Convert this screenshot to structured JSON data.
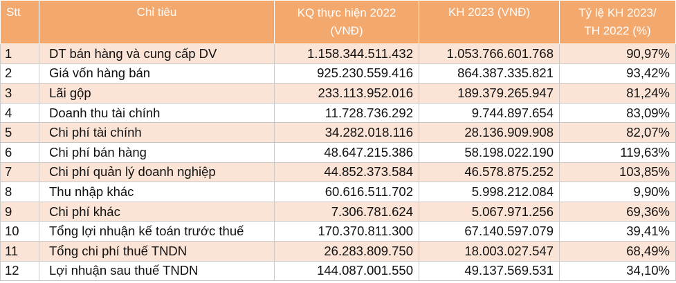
{
  "table": {
    "headers": {
      "stt": "Stt",
      "name": "Chỉ tiêu",
      "actual_2022_line1": "KQ thực hiện 2022",
      "actual_2022_line2": "(VNĐ)",
      "plan_2023": "KH 2023 (VNĐ)",
      "ratio_line1": "Tỷ lệ KH 2023/",
      "ratio_line2": "TH 2022 (%)"
    },
    "rows": [
      {
        "stt": "1",
        "name": "DT bán hàng và cung cấp DV",
        "actual_2022": "1.158.344.511.432",
        "plan_2023": "1.053.766.601.768",
        "ratio": "90,97%"
      },
      {
        "stt": "2",
        "name": "Giá vốn hàng bán",
        "actual_2022": "925.230.559.416",
        "plan_2023": "864.387.335.821",
        "ratio": "93,42%"
      },
      {
        "stt": "3",
        "name": "Lãi gộp",
        "actual_2022": "233.113.952.016",
        "plan_2023": "189.379.265.947",
        "ratio": "81,24%"
      },
      {
        "stt": "4",
        "name": "Doanh thu tài chính",
        "actual_2022": "11.728.736.292",
        "plan_2023": "9.744.897.654",
        "ratio": "83,09%"
      },
      {
        "stt": "5",
        "name": "Chi phí tài chính",
        "actual_2022": "34.282.018.116",
        "plan_2023": "28.136.909.908",
        "ratio": "82,07%"
      },
      {
        "stt": "6",
        "name": "Chi phí bán hàng",
        "actual_2022": "48.647.215.386",
        "plan_2023": "58.198.022.190",
        "ratio": "119,63%"
      },
      {
        "stt": "7",
        "name": "Chi phí quản lý doanh nghiệp",
        "actual_2022": "44.852.373.584",
        "plan_2023": "46.578.875.252",
        "ratio": "103,85%"
      },
      {
        "stt": "8",
        "name": "Thu nhập khác",
        "actual_2022": "60.616.511.702",
        "plan_2023": "5.998.212.084",
        "ratio": "9,90%"
      },
      {
        "stt": "9",
        "name": "Chi phí khác",
        "actual_2022": "7.306.781.624",
        "plan_2023": "5.067.971.256",
        "ratio": "69,36%"
      },
      {
        "stt": "10",
        "name": "Tổng lợi nhuận kế toán trước thuế",
        "actual_2022": "170.370.811.300",
        "plan_2023": "67.140.597.079",
        "ratio": "39,41%"
      },
      {
        "stt": "11",
        "name": "Tổng chi phí thuế TNDN",
        "actual_2022": "26.283.809.750",
        "plan_2023": "18.003.027.547",
        "ratio": "68,49%"
      },
      {
        "stt": "12",
        "name": "Lợi nhuận sau thuế TNDN",
        "actual_2022": "144.087.001.550",
        "plan_2023": "49.137.569.531",
        "ratio": "34,10%"
      }
    ]
  },
  "colors": {
    "header_bg": "#f3a86e",
    "header_text": "#ffffff",
    "odd_row_bg": "#fbe4d5",
    "even_row_bg": "#ffffff"
  }
}
